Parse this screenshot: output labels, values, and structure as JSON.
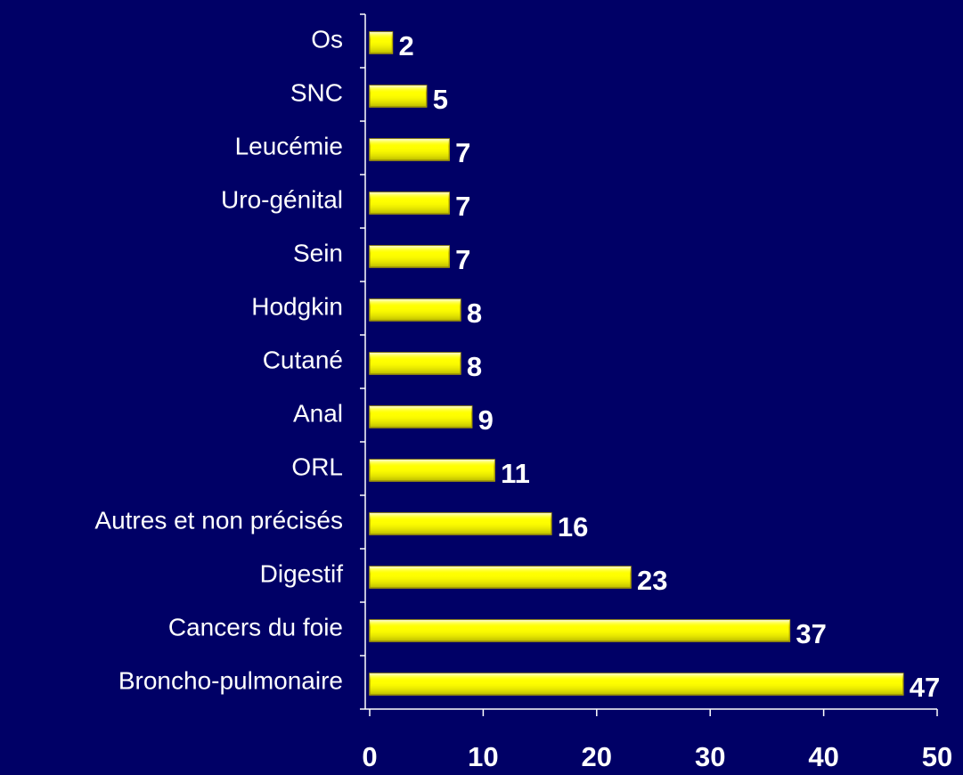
{
  "chart_data": {
    "type": "bar",
    "orientation": "horizontal",
    "categories": [
      "Os",
      "SNC",
      "Leucémie",
      "Uro-génital",
      "Sein",
      "Hodgkin",
      "Cutané",
      "Anal",
      "ORL",
      "Autres et non précisés",
      "Digestif",
      "Cancers du foie",
      "Broncho-pulmonaire"
    ],
    "values": [
      2,
      5,
      7,
      7,
      7,
      8,
      8,
      9,
      11,
      16,
      23,
      37,
      47
    ],
    "color": "#ffff00",
    "xlim": [
      0,
      50
    ],
    "xticks": [
      0,
      10,
      20,
      30,
      40,
      50
    ]
  }
}
